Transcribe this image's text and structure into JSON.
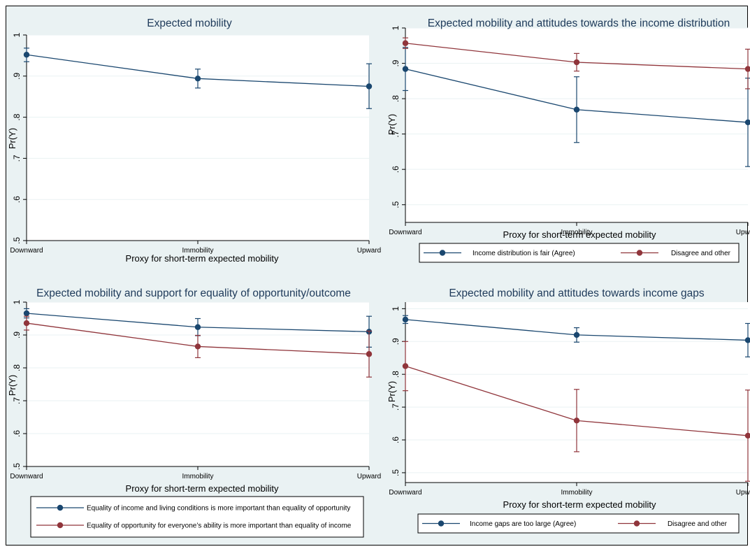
{
  "colors": {
    "background": "#eaf2f3",
    "series1": "#1a476f",
    "series2": "#90353b",
    "axis": "#000000",
    "grid": "#eaf2f3"
  },
  "chart_data": [
    {
      "type": "line",
      "title": "Expected mobility",
      "xlabel": "Proxy for short-term expected mobility",
      "ylabel": "Pr(Y)",
      "categories": [
        "Downward",
        "Immobility",
        "Upward"
      ],
      "ylim": [
        0.5,
        1.0
      ],
      "yticks": [
        0.5,
        0.6,
        0.7,
        0.8,
        0.9,
        1.0
      ],
      "ytick_labels": [
        ".5",
        ".6",
        ".7",
        ".8",
        ".9",
        "1"
      ],
      "series": [
        {
          "values": [
            0.952,
            0.894,
            0.875
          ],
          "ci_low": [
            0.935,
            0.871,
            0.821
          ],
          "ci_high": [
            0.968,
            0.917,
            0.93
          ]
        }
      ],
      "legend": []
    },
    {
      "type": "line",
      "title": "Expected mobility and attitudes towards the income distribution",
      "xlabel": "Proxy for short-term expected mobility",
      "ylabel": "Pr(Y)",
      "categories": [
        "Downward",
        "Immobility",
        "Upward"
      ],
      "ylim": [
        0.45,
        1.0
      ],
      "yticks": [
        0.5,
        0.6,
        0.7,
        0.8,
        0.9,
        1.0
      ],
      "ytick_labels": [
        ".5",
        ".6",
        ".7",
        ".8",
        ".9",
        "1"
      ],
      "series": [
        {
          "name": "Income distribution is fair (Agree)",
          "values": [
            0.884,
            0.769,
            0.733
          ],
          "ci_low": [
            0.823,
            0.676,
            0.608
          ],
          "ci_high": [
            0.945,
            0.862,
            0.858
          ]
        },
        {
          "name": "Disagree and other",
          "values": [
            0.957,
            0.903,
            0.884
          ],
          "ci_low": [
            0.942,
            0.878,
            0.828
          ],
          "ci_high": [
            0.972,
            0.928,
            0.94
          ]
        }
      ],
      "legend": [
        "Income distribution is fair (Agree)",
        "Disagree and other"
      ]
    },
    {
      "type": "line",
      "title": "Expected mobility and support for equality of opportunity/outcome",
      "xlabel": "Proxy for short-term expected mobility",
      "ylabel": "Pr(Y)",
      "categories": [
        "Downward",
        "Immobility",
        "Upward"
      ],
      "ylim": [
        0.5,
        1.0
      ],
      "yticks": [
        0.5,
        0.6,
        0.7,
        0.8,
        0.9,
        1.0
      ],
      "ytick_labels": [
        ".5",
        ".6",
        ".7",
        ".8",
        ".9",
        "1"
      ],
      "series": [
        {
          "name": "Equality of income and living conditions is more important than equality of opportunity",
          "values": [
            0.966,
            0.924,
            0.91
          ],
          "ci_low": [
            0.952,
            0.898,
            0.863
          ],
          "ci_high": [
            0.98,
            0.95,
            0.957
          ]
        },
        {
          "name": "Equality of opportunity for everyone’s ability is more important than equality of income",
          "values": [
            0.936,
            0.865,
            0.842
          ],
          "ci_low": [
            0.915,
            0.831,
            0.772
          ],
          "ci_high": [
            0.957,
            0.899,
            0.912
          ]
        }
      ],
      "legend": [
        "Equality of income and living conditions is more important than equality of opportunity",
        "Equality of opportunity for everyone’s ability is more important than equality of income"
      ]
    },
    {
      "type": "line",
      "title": "Expected mobility and attitudes towards income gaps",
      "xlabel": "Proxy for short-term expected mobility",
      "ylabel": "Pr(Y)",
      "categories": [
        "Downward",
        "Immobility",
        "Upward"
      ],
      "ylim": [
        0.47,
        1.02
      ],
      "yticks": [
        0.5,
        0.6,
        0.7,
        0.8,
        0.9,
        1.0
      ],
      "ytick_labels": [
        ".5",
        ".6",
        ".7",
        ".8",
        ".9",
        "1"
      ],
      "series": [
        {
          "name": "Income gaps are too large (Agree)",
          "values": [
            0.967,
            0.92,
            0.904
          ],
          "ci_low": [
            0.955,
            0.898,
            0.853
          ],
          "ci_high": [
            0.979,
            0.942,
            0.955
          ]
        },
        {
          "name": "Disagree and other",
          "values": [
            0.825,
            0.659,
            0.613
          ],
          "ci_low": [
            0.75,
            0.564,
            0.474
          ],
          "ci_high": [
            0.9,
            0.754,
            0.752
          ]
        }
      ],
      "legend": [
        "Income gaps are too large (Agree)",
        "Disagree and other"
      ]
    }
  ]
}
